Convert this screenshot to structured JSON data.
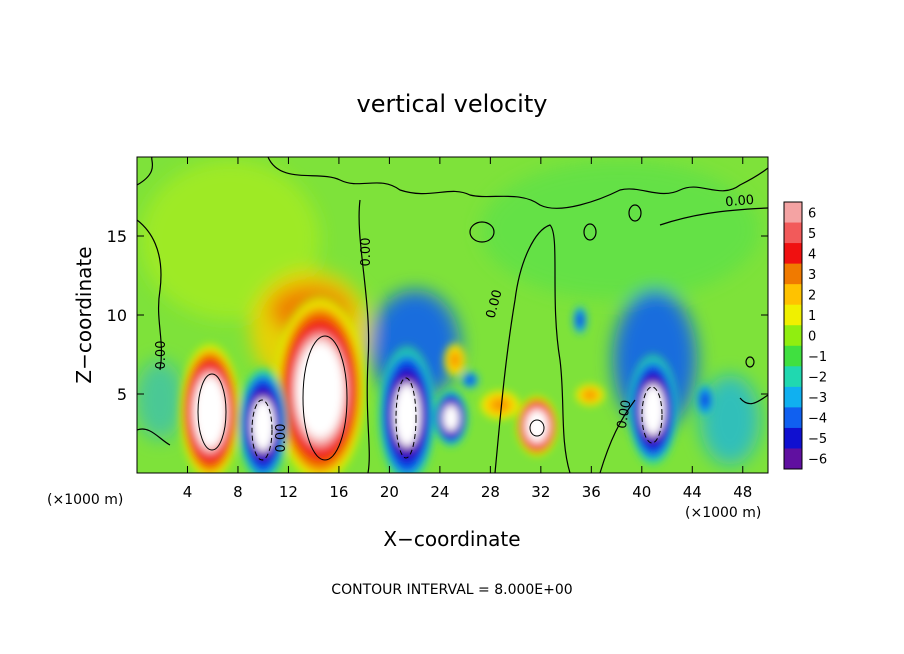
{
  "chart_data": {
    "type": "heatmap",
    "title": "vertical velocity",
    "xlabel": "X−coordinate",
    "ylabel": "Z−coordinate",
    "x_unit": "(×1000 m)",
    "x_unit_right": "(×1000 m)",
    "footer": "CONTOUR INTERVAL = 8.000E+00",
    "xlim": [
      0,
      50
    ],
    "ylim": [
      0,
      20
    ],
    "x_ticks": [
      4,
      8,
      12,
      16,
      20,
      24,
      28,
      32,
      36,
      40,
      44,
      48
    ],
    "y_ticks": [
      5,
      10,
      15
    ],
    "zero_contour_label": "0.00",
    "colorbar": {
      "levels": [
        "6",
        "5",
        "4",
        "3",
        "2",
        "1",
        "0",
        "−1",
        "−2",
        "−3",
        "−4",
        "−5",
        "−6"
      ],
      "colors": [
        "#f4a3a3",
        "#f25a5a",
        "#f01010",
        "#f07a00",
        "#ffc200",
        "#f0f000",
        "#90ee10",
        "#40e040",
        "#20d8b0",
        "#10b0f0",
        "#1060f0",
        "#1010d0",
        "#6010a0"
      ]
    },
    "features": [
      {
        "x": 5.8,
        "z": 4.2,
        "w": 8,
        "sign": "+"
      },
      {
        "x": 14.5,
        "z": 4.5,
        "w": 9,
        "sign": "+"
      },
      {
        "x": 10,
        "z": 3,
        "w": -7,
        "sign": "-"
      },
      {
        "x": 21,
        "z": 4,
        "w": -8,
        "sign": "-"
      },
      {
        "x": 24.5,
        "z": 3.5,
        "w": -6,
        "sign": "-"
      },
      {
        "x": 31.5,
        "z": 3,
        "w": 6,
        "sign": "+"
      },
      {
        "x": 41,
        "z": 4.5,
        "w": -8,
        "sign": "-"
      }
    ]
  }
}
